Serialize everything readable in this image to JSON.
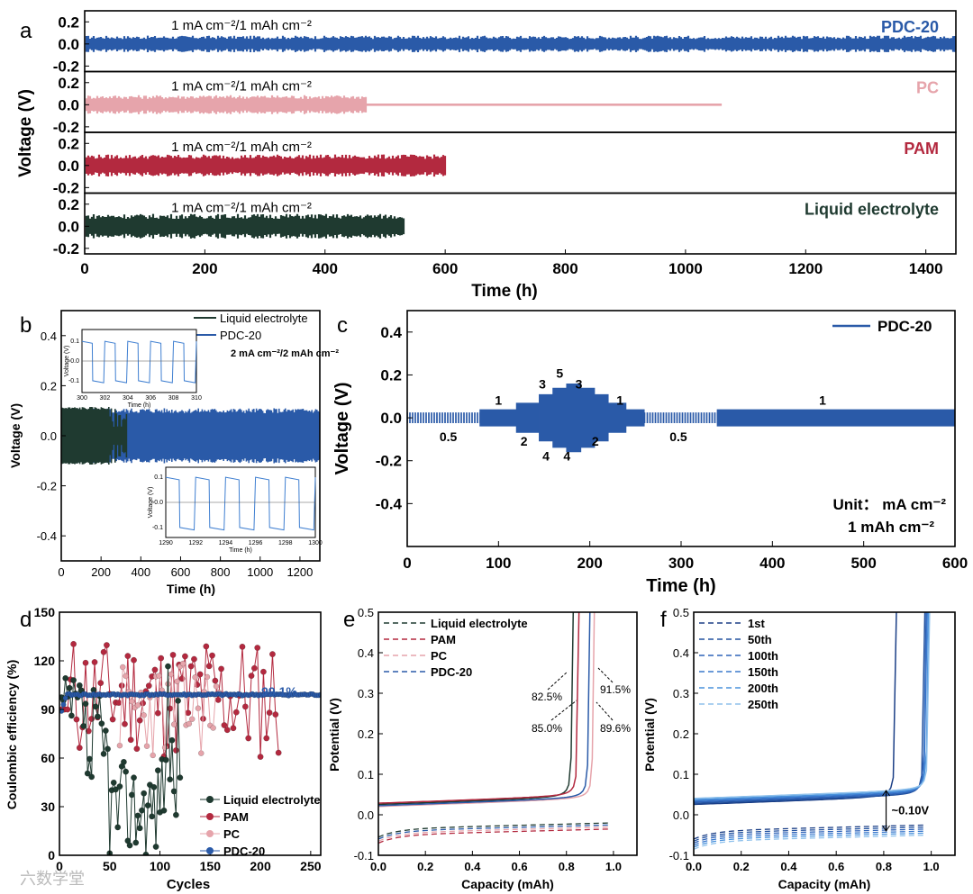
{
  "colors": {
    "pdc20": "#2a5aa8",
    "pc": "#e6a4ab",
    "pam": "#b3293f",
    "liquid": "#1f3a30",
    "pdc20_light": "#3f7fd1"
  },
  "chart_data": [
    {
      "panel": "a",
      "type": "line",
      "xlabel": "Time (h)",
      "ylabel": "Voltage (V)",
      "xlim": [
        0,
        1450
      ],
      "xticks": [
        0,
        200,
        400,
        600,
        800,
        1000,
        1200,
        1400
      ],
      "ylim": [
        -0.25,
        0.3
      ],
      "yticks": [
        "-0.2",
        "0.0",
        "0.2"
      ],
      "condition": "1 mA cm⁻²/1 mAh cm⁻²",
      "series": [
        {
          "name": "PDC-20",
          "end_time": 1450,
          "amplitude": 0.06
        },
        {
          "name": "PC",
          "end_time": 1060,
          "amplitude": 0.07
        },
        {
          "name": "PAM",
          "end_time": 600,
          "amplitude": 0.08
        },
        {
          "name": "Liquid electrolyte",
          "end_time": 532,
          "amplitude": 0.09
        }
      ]
    },
    {
      "panel": "b",
      "type": "line",
      "xlabel": "Time (h)",
      "ylabel": "Voltage (V)",
      "xlim": [
        0,
        1300
      ],
      "xticks": [
        0,
        200,
        400,
        600,
        800,
        1000,
        1200
      ],
      "ylim": [
        -0.5,
        0.5
      ],
      "yticks": [
        "-0.4",
        "-0.2",
        "0.0",
        "0.2",
        "0.4"
      ],
      "legend": [
        "Liquid electrolyte",
        "PDC-20"
      ],
      "condition": "2 mA cm⁻²/2 mAh cm⁻²",
      "series": [
        {
          "name": "Liquid electrolyte",
          "end_time": 330,
          "amplitude": 0.11
        },
        {
          "name": "PDC-20",
          "end_time": 1300,
          "amplitude": 0.1
        }
      ],
      "inset_top": {
        "xlim": [
          300,
          310
        ],
        "xticks": [
          "300",
          "302",
          "304",
          "306",
          "308",
          "310"
        ],
        "yticks": [
          "0.1",
          "0.0",
          "-0.1"
        ],
        "xlabel": "Time (h)",
        "ylabel": "Voltage (V)"
      },
      "inset_bottom": {
        "xlim": [
          1290,
          1300
        ],
        "xticks": [
          "1290",
          "1292",
          "1294",
          "1296",
          "1298",
          "1300"
        ],
        "yticks": [
          "0.1",
          "0.0",
          "-0.1"
        ],
        "xlabel": "Time (h)",
        "ylabel": "Voltage (V)"
      }
    },
    {
      "panel": "c",
      "type": "line",
      "xlabel": "Time (h)",
      "ylabel": "Voltage (V)",
      "xlim": [
        0,
        600
      ],
      "xticks": [
        0,
        100,
        200,
        300,
        400,
        500,
        600
      ],
      "ylim": [
        -0.6,
        0.5
      ],
      "yticks": [
        "-0.4",
        "-0.2",
        "0.0",
        "0.2",
        "0.4"
      ],
      "legend": [
        "PDC-20"
      ],
      "unit_line1": "Unit： mA cm⁻²",
      "unit_line2": "1 mAh cm⁻²",
      "segments": [
        {
          "t0": 0,
          "t1": 80,
          "amp": 0.025,
          "label": "0.5"
        },
        {
          "t0": 80,
          "t1": 120,
          "amp": 0.04,
          "label": "1"
        },
        {
          "t0": 120,
          "t1": 145,
          "amp": 0.07,
          "label": "2"
        },
        {
          "t0": 145,
          "t1": 160,
          "amp": 0.11,
          "label": "3"
        },
        {
          "t0": 160,
          "t1": 175,
          "amp": 0.14,
          "label": "4"
        },
        {
          "t0": 175,
          "t1": 190,
          "amp": 0.16,
          "label": "5"
        },
        {
          "t0": 190,
          "t1": 205,
          "amp": 0.14,
          "label": "4"
        },
        {
          "t0": 205,
          "t1": 220,
          "amp": 0.11,
          "label": "3"
        },
        {
          "t0": 220,
          "t1": 240,
          "amp": 0.07,
          "label": "2"
        },
        {
          "t0": 240,
          "t1": 260,
          "amp": 0.04,
          "label": "1"
        },
        {
          "t0": 260,
          "t1": 340,
          "amp": 0.025,
          "label": "0.5"
        },
        {
          "t0": 340,
          "t1": 600,
          "amp": 0.04,
          "label": "1"
        }
      ]
    },
    {
      "panel": "d",
      "type": "scatter",
      "xlabel": "Cycles",
      "ylabel": "Coulombic efficiency (%)",
      "xlim": [
        0,
        260
      ],
      "xticks": [
        0,
        50,
        100,
        150,
        200,
        250
      ],
      "ylim": [
        0,
        150
      ],
      "yticks": [
        0,
        30,
        60,
        90,
        120,
        150
      ],
      "annotation": "99.1%",
      "legend": [
        "Liquid electrolyte",
        "PAM",
        "PC",
        "PDC-20"
      ],
      "series": [
        {
          "name": "Liquid electrolyte",
          "max_cycle": 120
        },
        {
          "name": "PAM",
          "max_cycle": 220
        },
        {
          "name": "PC",
          "max_cycle": 160
        },
        {
          "name": "PDC-20",
          "max_cycle": 260,
          "stable_value": 99.1
        }
      ]
    },
    {
      "panel": "e",
      "type": "line",
      "xlabel": "Capacity (mAh)",
      "ylabel": "Potential (V)",
      "xlim": [
        0,
        1.1
      ],
      "xticks": [
        "0.0",
        "0.2",
        "0.4",
        "0.6",
        "0.8",
        "1.0"
      ],
      "ylim": [
        -0.1,
        0.5
      ],
      "yticks": [
        "-0.1",
        "0.0",
        "0.1",
        "0.2",
        "0.3",
        "0.4",
        "0.5"
      ],
      "legend": [
        "Liquid electrolyte",
        "PAM",
        "PC",
        "PDC-20"
      ],
      "efficiencies": [
        "82.5%",
        "85.0%",
        "91.5%",
        "89.6%"
      ],
      "series": [
        {
          "name": "Liquid electrolyte",
          "charge_end": 0.825
        },
        {
          "name": "PAM",
          "charge_end": 0.85
        },
        {
          "name": "PC",
          "charge_end": 0.915
        },
        {
          "name": "PDC-20",
          "charge_end": 0.896
        }
      ]
    },
    {
      "panel": "f",
      "type": "line",
      "xlabel": "Capacity (mAh)",
      "ylabel": "Potential (V)",
      "xlim": [
        0,
        1.1
      ],
      "xticks": [
        "0.0",
        "0.2",
        "0.4",
        "0.6",
        "0.8",
        "1.0"
      ],
      "ylim": [
        -0.1,
        0.5
      ],
      "yticks": [
        "-0.1",
        "0.0",
        "0.1",
        "0.2",
        "0.3",
        "0.4",
        "0.5"
      ],
      "legend": [
        "1st",
        "50th",
        "100th",
        "150th",
        "200th",
        "250th"
      ],
      "annotation": "~0.10V"
    }
  ],
  "watermark": "六数学堂"
}
